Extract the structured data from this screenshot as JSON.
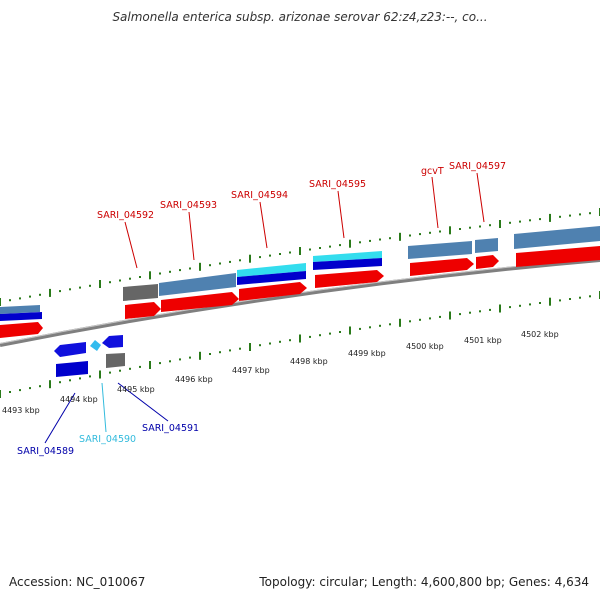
{
  "title": "Salmonella enterica subsp. arizonae serovar 62:z4,z23:--, co...",
  "footer": {
    "accession": "Accession: NC_010067",
    "summary": "Topology: circular; Length: 4,600,800 bp; Genes: 4,634"
  },
  "colors": {
    "forward_label": "#cc0000",
    "reverse_label": "#0000aa",
    "cyan_label": "#33bbdd",
    "tick": "#2a7a1a",
    "cds_red": "#ee0000",
    "gene_steelblue": "#4f81b0",
    "gene_blue": "#0000cc",
    "gene_cyan": "#33ddee",
    "gene_gray": "#666666",
    "backbone": "#888888"
  },
  "scale_labels": [
    "4493 kbp",
    "4494 kbp",
    "4495 kbp",
    "4496 kbp",
    "4497 kbp",
    "4498 kbp",
    "4499 kbp",
    "4500 kbp",
    "4501 kbp",
    "4502 kbp"
  ],
  "forward_genes": [
    "SARI_04592",
    "SARI_04593",
    "SARI_04594",
    "SARI_04595",
    "gcvT",
    "SARI_04597"
  ],
  "reverse_genes": [
    "SARI_04589",
    "SARI_04590",
    "SARI_04591"
  ]
}
